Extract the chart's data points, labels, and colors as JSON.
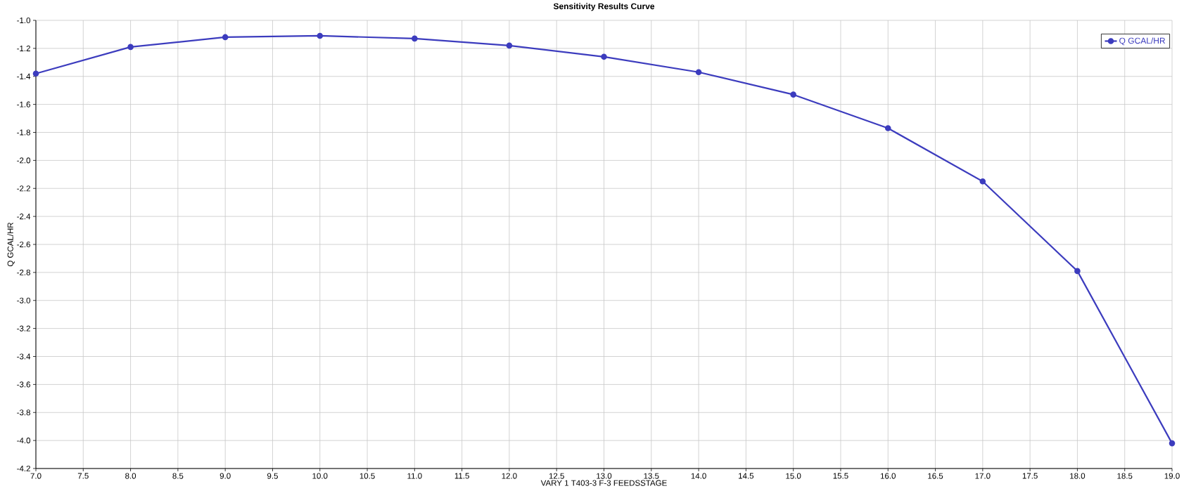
{
  "chart_data": {
    "type": "line",
    "title": "Sensitivity Results Curve",
    "xlabel": "VARY 1 T403-3 F-3 FEEDSSTAGE",
    "ylabel": "Q GCAL/HR",
    "x": [
      7,
      8,
      9,
      10,
      11,
      12,
      13,
      14,
      15,
      16,
      17,
      18,
      19
    ],
    "series": [
      {
        "name": "Q GCAL/HR",
        "color": "#3c3cbe",
        "values": [
          -1.38,
          -1.19,
          -1.12,
          -1.11,
          -1.13,
          -1.18,
          -1.26,
          -1.37,
          -1.53,
          -1.77,
          -2.15,
          -2.79,
          -4.02
        ]
      }
    ],
    "xlim": [
      7,
      19
    ],
    "ylim": [
      -4.2,
      -1.0
    ],
    "xticks": [
      {
        "value": 7,
        "label": "7.0"
      },
      7.5,
      {
        "value": 8,
        "label": "8.0"
      },
      8.5,
      {
        "value": 9,
        "label": "9.0"
      },
      9.5,
      {
        "value": 10,
        "label": "10.0"
      },
      10.5,
      {
        "value": 11,
        "label": "11.0"
      },
      11.5,
      {
        "value": 12,
        "label": "12.0"
      },
      12.5,
      {
        "value": 13,
        "label": "13.0"
      },
      13.5,
      {
        "value": 14,
        "label": "14.0"
      },
      14.5,
      {
        "value": 15,
        "label": "15.0"
      },
      15.5,
      {
        "value": 16,
        "label": "16.0"
      },
      16.5,
      {
        "value": 17,
        "label": "17.0"
      },
      17.5,
      {
        "value": 18,
        "label": "18.0"
      },
      18.5,
      {
        "value": 19,
        "label": "19.0"
      }
    ],
    "yticks": [
      -4.2,
      {
        "value": -4.0,
        "label": "-4.0"
      },
      -3.8,
      -3.6,
      -3.4,
      -3.2,
      {
        "value": -3.0,
        "label": "-3.0"
      },
      -2.8,
      -2.6,
      -2.4,
      -2.2,
      {
        "value": -2.0,
        "label": "-2.0"
      },
      -1.8,
      -1.6,
      -1.4,
      -1.2,
      {
        "value": -1.0,
        "label": "-1.0"
      }
    ],
    "grid": true,
    "legend": "top right",
    "marker": "circle",
    "line_style": "solid"
  }
}
